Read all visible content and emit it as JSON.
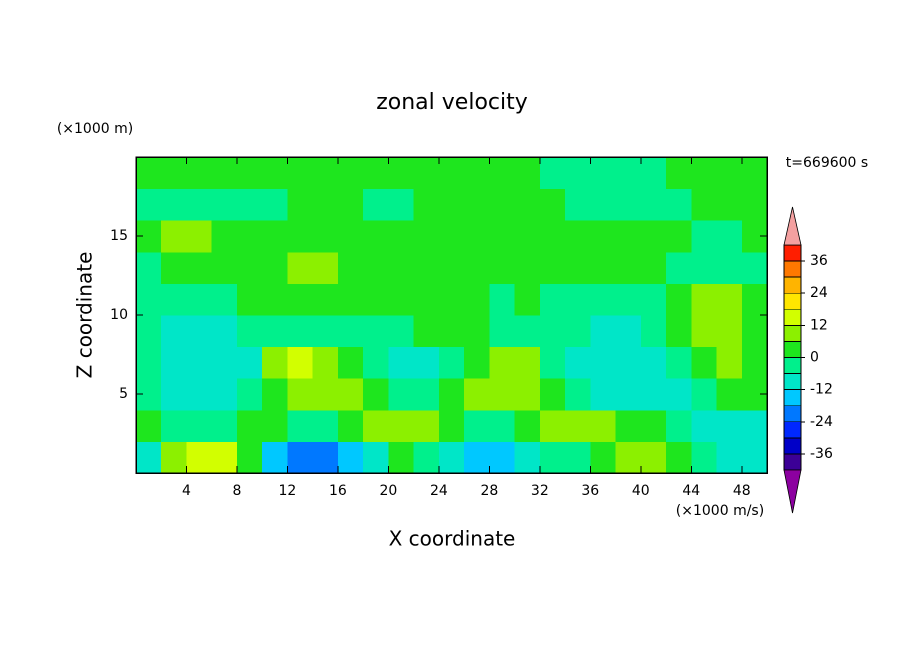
{
  "chart_data": {
    "type": "contour",
    "title": "zonal velocity",
    "xlabel": "X coordinate",
    "ylabel": "Z coordinate",
    "x_unit": "(×1000 m/s)",
    "y_unit": "(×1000 m)",
    "time_label": "t=669600 s",
    "xlim": [
      0,
      50
    ],
    "ylim": [
      0,
      20
    ],
    "xticks": [
      4,
      8,
      12,
      16,
      20,
      24,
      28,
      32,
      36,
      40,
      44,
      48
    ],
    "yticks": [
      5,
      10,
      15
    ],
    "x": [
      1,
      3,
      5,
      7,
      9,
      11,
      13,
      15,
      17,
      19,
      21,
      23,
      25,
      27,
      29,
      31,
      33,
      35,
      37,
      39,
      41,
      43,
      45,
      47,
      49
    ],
    "z": [
      1,
      3,
      5,
      7,
      9,
      11,
      13,
      15,
      17,
      19
    ],
    "values": [
      [
        -9,
        9,
        15,
        15,
        3,
        -15,
        -21,
        -21,
        -15,
        -9,
        3,
        -3,
        -9,
        -15,
        -15,
        -9,
        -3,
        -3,
        3,
        9,
        9,
        3,
        -3,
        -9,
        -9
      ],
      [
        3,
        -3,
        -3,
        -3,
        3,
        3,
        -3,
        -3,
        3,
        9,
        9,
        9,
        3,
        -3,
        -3,
        3,
        9,
        9,
        9,
        3,
        3,
        -3,
        -9,
        -9,
        -9
      ],
      [
        -3,
        -9,
        -9,
        -9,
        -3,
        3,
        9,
        9,
        9,
        3,
        -3,
        -3,
        3,
        9,
        9,
        9,
        3,
        -3,
        -9,
        -9,
        -9,
        -9,
        -3,
        3,
        3
      ],
      [
        -3,
        -9,
        -9,
        -9,
        -9,
        9,
        15,
        9,
        3,
        -3,
        -9,
        -9,
        -3,
        3,
        9,
        9,
        -3,
        -9,
        -9,
        -9,
        -9,
        -3,
        3,
        9,
        3
      ],
      [
        -3,
        -9,
        -9,
        -9,
        -3,
        -3,
        -3,
        -3,
        -3,
        -3,
        -3,
        3,
        3,
        3,
        -3,
        -3,
        -3,
        -3,
        -9,
        -9,
        -3,
        3,
        9,
        9,
        3
      ],
      [
        -3,
        -3,
        -3,
        -3,
        3,
        3,
        3,
        3,
        3,
        3,
        3,
        3,
        3,
        3,
        -3,
        3,
        -3,
        -3,
        -3,
        -3,
        -3,
        3,
        9,
        9,
        3
      ],
      [
        -3,
        3,
        3,
        3,
        3,
        3,
        9,
        9,
        3,
        3,
        3,
        3,
        3,
        3,
        3,
        3,
        3,
        3,
        3,
        3,
        3,
        -3,
        -3,
        -3,
        -3
      ],
      [
        3,
        9,
        9,
        3,
        3,
        3,
        3,
        3,
        3,
        3,
        3,
        3,
        3,
        3,
        3,
        3,
        3,
        3,
        3,
        3,
        3,
        3,
        -3,
        -3,
        3
      ],
      [
        -3,
        -3,
        -3,
        -3,
        -3,
        -3,
        3,
        3,
        3,
        -3,
        -3,
        3,
        3,
        3,
        3,
        3,
        3,
        -3,
        -3,
        -3,
        -3,
        -3,
        3,
        3,
        3
      ],
      [
        3,
        3,
        3,
        3,
        3,
        3,
        3,
        3,
        3,
        3,
        3,
        3,
        3,
        3,
        3,
        3,
        -3,
        -3,
        -3,
        -3,
        -3,
        3,
        3,
        3,
        3
      ]
    ],
    "levels": [
      -42,
      -36,
      -30,
      -24,
      -18,
      -12,
      -6,
      0,
      6,
      12,
      18,
      24,
      30,
      36,
      42
    ],
    "colors": [
      "#3c0096",
      "#0000c8",
      "#0028ff",
      "#0078ff",
      "#00c8ff",
      "#00e6c8",
      "#00f08c",
      "#1ee61e",
      "#8cf000",
      "#d2ff00",
      "#ffe600",
      "#ffb400",
      "#ff7800",
      "#ff1e00"
    ],
    "over_color": "#f4a0a0",
    "under_color": "#8c00a0",
    "colorbar_ticks": [
      36,
      24,
      12,
      0,
      -12,
      -24,
      -36
    ]
  }
}
